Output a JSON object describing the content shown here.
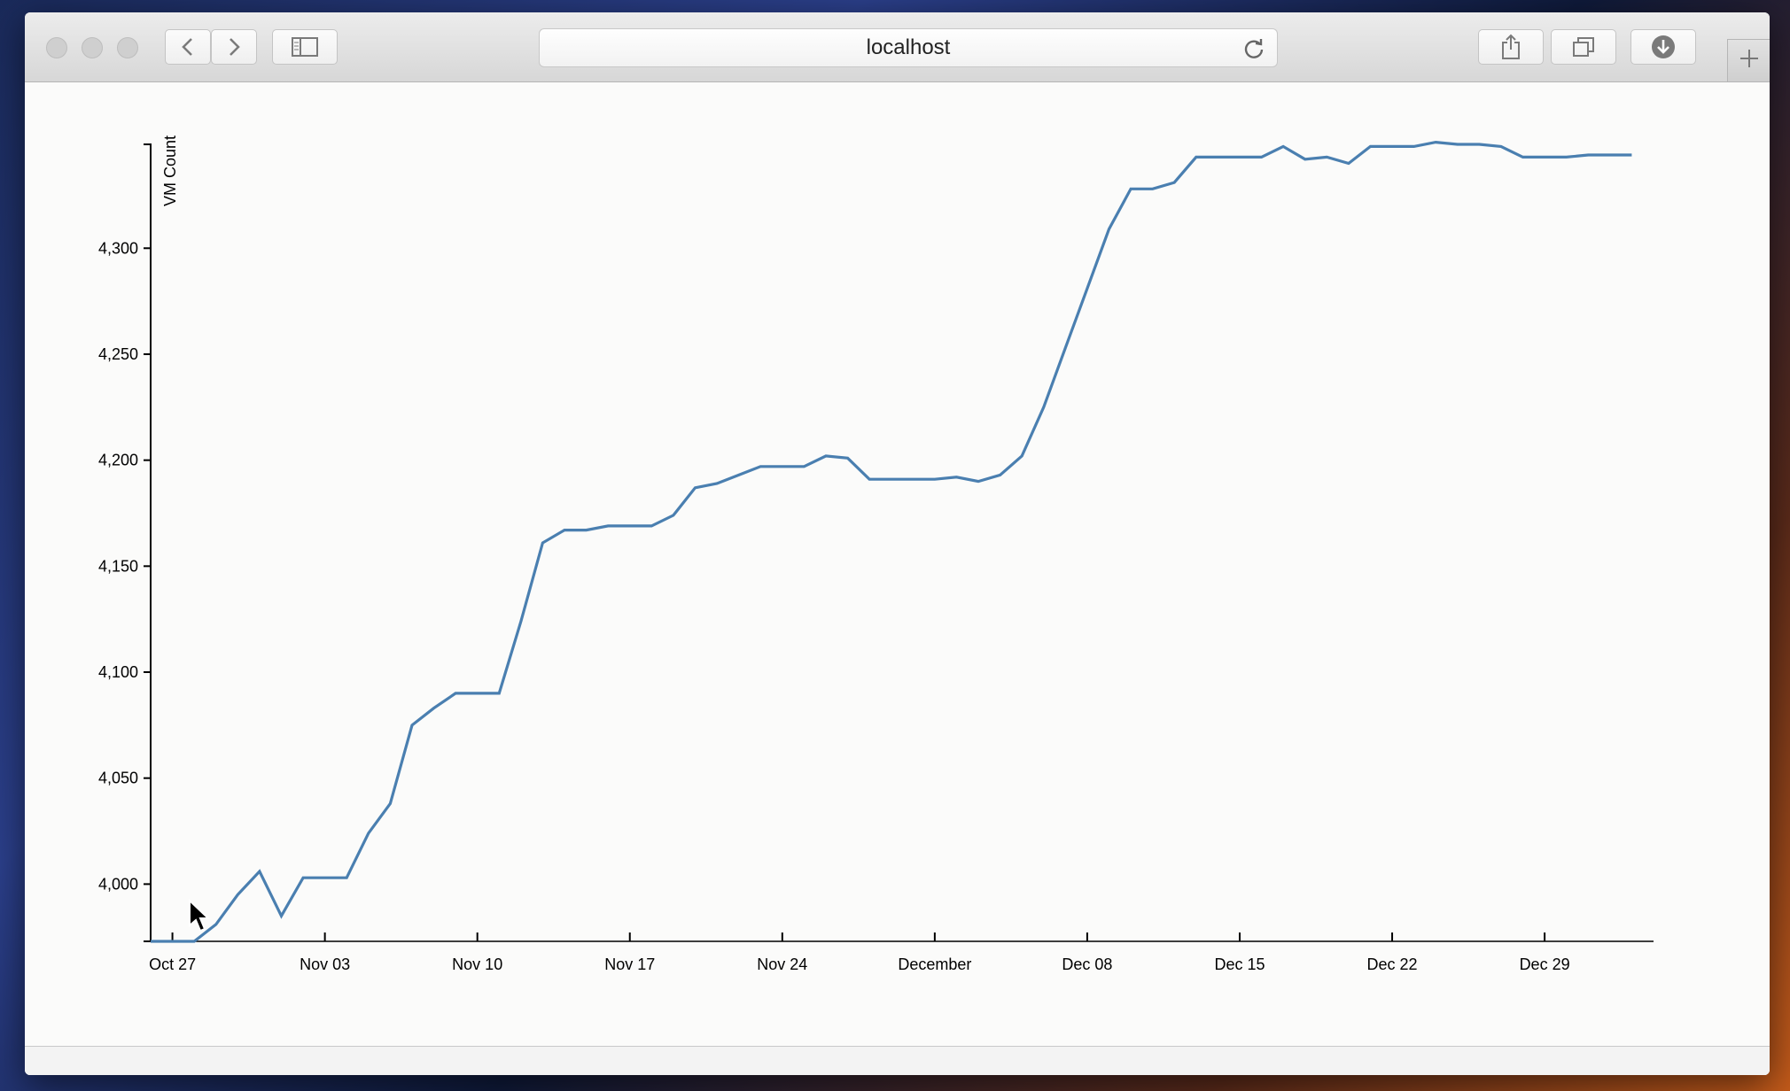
{
  "browser": {
    "address": "localhost",
    "icons": [
      "back-icon",
      "forward-icon",
      "sidebar-icon",
      "reload-icon",
      "share-icon",
      "tabs-icon",
      "download-icon",
      "plus-icon"
    ]
  },
  "chart_data": {
    "type": "line",
    "title": "",
    "xlabel": "",
    "ylabel": "VM Count",
    "x_ticks": [
      "Oct 27",
      "Nov 03",
      "Nov 10",
      "Nov 17",
      "Nov 24",
      "December",
      "Dec 08",
      "Dec 15",
      "Dec 22",
      "Dec 29"
    ],
    "y_ticks": [
      "4,000",
      "4,050",
      "4,100",
      "4,150",
      "4,200",
      "4,250",
      "4,300"
    ],
    "ylim": [
      3973,
      4349
    ],
    "xlim": [
      "2014-10-26",
      "2015-01-03"
    ],
    "grid": false,
    "color": "#4a7fb0",
    "series": [
      {
        "x": [
          "2014-10-26",
          "2014-10-27",
          "2014-10-28",
          "2014-10-29",
          "2014-10-30",
          "2014-10-31",
          "2014-11-01",
          "2014-11-02",
          "2014-11-03",
          "2014-11-04",
          "2014-11-05",
          "2014-11-06",
          "2014-11-07",
          "2014-11-08",
          "2014-11-09",
          "2014-11-10",
          "2014-11-11",
          "2014-11-12",
          "2014-11-13",
          "2014-11-14",
          "2014-11-15",
          "2014-11-16",
          "2014-11-17",
          "2014-11-18",
          "2014-11-19",
          "2014-11-20",
          "2014-11-21",
          "2014-11-22",
          "2014-11-23",
          "2014-11-24",
          "2014-11-25",
          "2014-11-26",
          "2014-11-27",
          "2014-11-28",
          "2014-11-29",
          "2014-11-30",
          "2014-12-01",
          "2014-12-02",
          "2014-12-03",
          "2014-12-04",
          "2014-12-05",
          "2014-12-06",
          "2014-12-07",
          "2014-12-08",
          "2014-12-09",
          "2014-12-10",
          "2014-12-11",
          "2014-12-12",
          "2014-12-13",
          "2014-12-14",
          "2014-12-15",
          "2014-12-16",
          "2014-12-17",
          "2014-12-18",
          "2014-12-19",
          "2014-12-20",
          "2014-12-21",
          "2014-12-22",
          "2014-12-23",
          "2014-12-24",
          "2014-12-25",
          "2014-12-26",
          "2014-12-27",
          "2014-12-28",
          "2014-12-29",
          "2014-12-30",
          "2014-12-31",
          "2015-01-01",
          "2015-01-02"
        ],
        "values": [
          3973,
          3973,
          3973,
          3981,
          3995,
          4006,
          3985,
          4003,
          4003,
          4003,
          4024,
          4038,
          4075,
          4083,
          4090,
          4090,
          4090,
          4124,
          4161,
          4167,
          4167,
          4169,
          4169,
          4169,
          4174,
          4187,
          4189,
          4193,
          4197,
          4197,
          4197,
          4202,
          4201,
          4191,
          4191,
          4191,
          4191,
          4192,
          4190,
          4193,
          4202,
          4225,
          4253,
          4281,
          4309,
          4328,
          4328,
          4331,
          4343,
          4343,
          4343,
          4343,
          4348,
          4342,
          4343,
          4340,
          4348,
          4348,
          4348,
          4350,
          4349,
          4349,
          4348,
          4343,
          4343,
          4343,
          4344,
          4344,
          4344
        ]
      }
    ]
  }
}
